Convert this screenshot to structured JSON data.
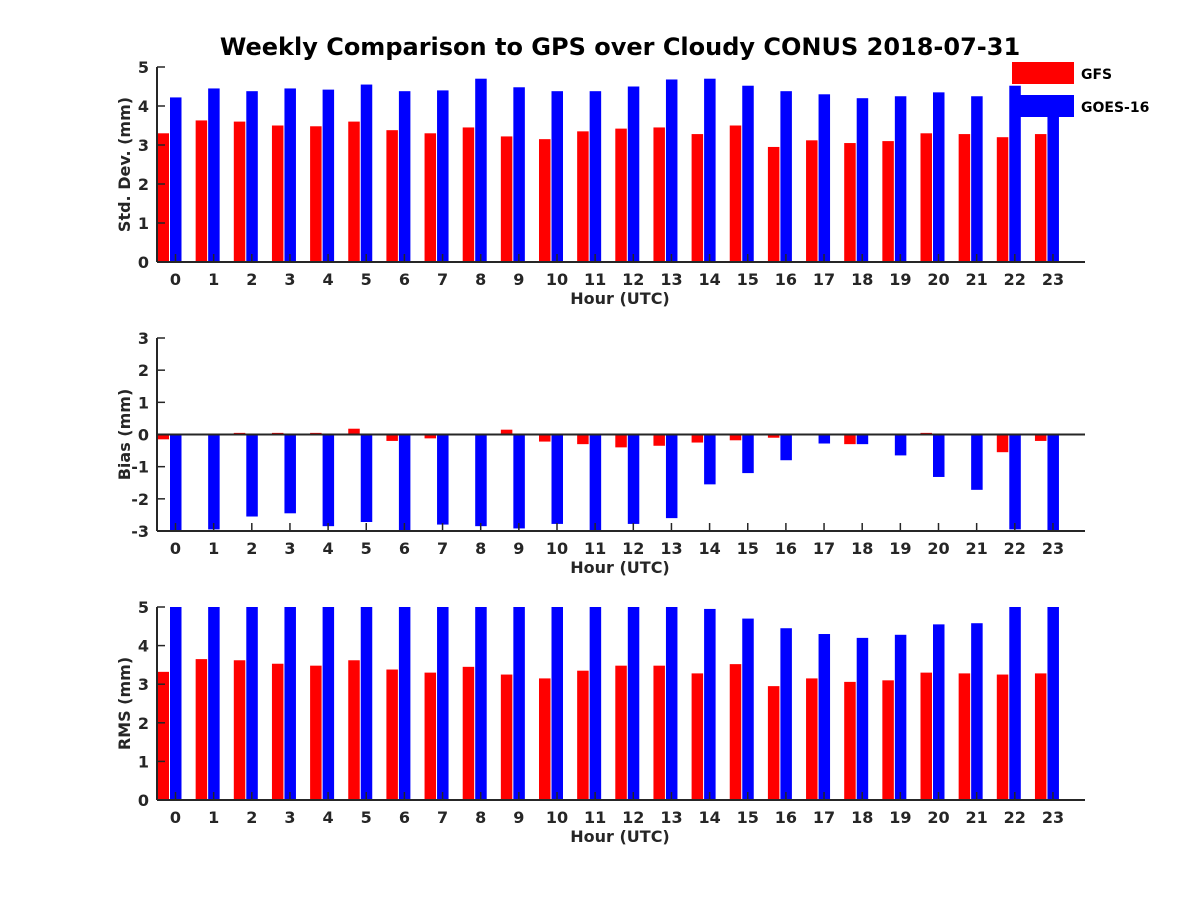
{
  "title": "Weekly Comparison to GPS over Cloudy CONUS 2018-07-31",
  "legend": [
    {
      "name": "GFS",
      "color": "#ff0000"
    },
    {
      "name": "GOES-16",
      "color": "#0000ff"
    }
  ],
  "chart_data": [
    {
      "type": "bar",
      "xlabel": "Hour (UTC)",
      "ylabel": "Std. Dev. (mm)",
      "ylim": [
        0,
        5
      ],
      "yticks": [
        0,
        1,
        2,
        3,
        4,
        5
      ],
      "categories": [
        "0",
        "1",
        "2",
        "3",
        "4",
        "5",
        "6",
        "7",
        "8",
        "9",
        "10",
        "11",
        "12",
        "13",
        "14",
        "15",
        "16",
        "17",
        "18",
        "19",
        "20",
        "21",
        "22",
        "23"
      ],
      "series": [
        {
          "name": "GFS",
          "color": "#ff0000",
          "values": [
            3.3,
            3.63,
            3.6,
            3.5,
            3.48,
            3.6,
            3.38,
            3.3,
            3.45,
            3.22,
            3.15,
            3.35,
            3.42,
            3.45,
            3.28,
            3.5,
            2.95,
            3.12,
            3.05,
            3.1,
            3.3,
            3.28,
            3.2,
            3.28
          ]
        },
        {
          "name": "GOES-16",
          "color": "#0000ff",
          "values": [
            4.22,
            4.45,
            4.38,
            4.45,
            4.42,
            4.55,
            4.38,
            4.4,
            4.7,
            4.48,
            4.38,
            4.38,
            4.5,
            4.68,
            4.7,
            4.52,
            4.38,
            4.3,
            4.2,
            4.25,
            4.35,
            4.25,
            4.52,
            3.8
          ]
        }
      ],
      "grid": false,
      "legend_position": "outside top-right"
    },
    {
      "type": "bar",
      "xlabel": "Hour (UTC)",
      "ylabel": "Bias (mm)",
      "ylim": [
        -3,
        3
      ],
      "yticks": [
        -3,
        -2,
        -1,
        0,
        1,
        2,
        3
      ],
      "categories": [
        "0",
        "1",
        "2",
        "3",
        "4",
        "5",
        "6",
        "7",
        "8",
        "9",
        "10",
        "11",
        "12",
        "13",
        "14",
        "15",
        "16",
        "17",
        "18",
        "19",
        "20",
        "21",
        "22",
        "23"
      ],
      "series": [
        {
          "name": "GFS",
          "color": "#ff0000",
          "values": [
            -0.15,
            -0.02,
            0.05,
            0.05,
            0.05,
            0.18,
            -0.2,
            -0.12,
            0.02,
            0.15,
            -0.22,
            -0.3,
            -0.4,
            -0.35,
            -0.25,
            -0.18,
            -0.1,
            -0.02,
            -0.3,
            -0.02,
            0.05,
            -0.03,
            -0.55,
            -0.2
          ]
        },
        {
          "name": "GOES-16",
          "color": "#0000ff",
          "values": [
            -3.0,
            -2.95,
            -2.55,
            -2.45,
            -2.85,
            -2.72,
            -3.0,
            -2.8,
            -2.85,
            -2.92,
            -2.78,
            -3.0,
            -2.78,
            -2.6,
            -1.55,
            -1.2,
            -0.8,
            -0.28,
            -0.3,
            -0.65,
            -1.32,
            -1.72,
            -2.95,
            -3.0
          ]
        }
      ],
      "grid": false
    },
    {
      "type": "bar",
      "xlabel": "Hour (UTC)",
      "ylabel": "RMS (mm)",
      "ylim": [
        0,
        5
      ],
      "yticks": [
        0,
        1,
        2,
        3,
        4,
        5
      ],
      "categories": [
        "0",
        "1",
        "2",
        "3",
        "4",
        "5",
        "6",
        "7",
        "8",
        "9",
        "10",
        "11",
        "12",
        "13",
        "14",
        "15",
        "16",
        "17",
        "18",
        "19",
        "20",
        "21",
        "22",
        "23"
      ],
      "series": [
        {
          "name": "GFS",
          "color": "#ff0000",
          "values": [
            3.32,
            3.65,
            3.62,
            3.53,
            3.48,
            3.62,
            3.38,
            3.3,
            3.45,
            3.25,
            3.15,
            3.35,
            3.48,
            3.48,
            3.28,
            3.52,
            2.95,
            3.15,
            3.06,
            3.1,
            3.3,
            3.28,
            3.25,
            3.28
          ]
        },
        {
          "name": "GOES-16",
          "color": "#0000ff",
          "values": [
            5.0,
            5.0,
            5.0,
            5.0,
            5.0,
            5.0,
            5.0,
            5.0,
            5.0,
            5.0,
            5.0,
            5.0,
            5.0,
            5.0,
            4.95,
            4.7,
            4.45,
            4.3,
            4.2,
            4.28,
            4.55,
            4.58,
            5.0,
            5.0
          ]
        }
      ],
      "grid": false
    }
  ]
}
